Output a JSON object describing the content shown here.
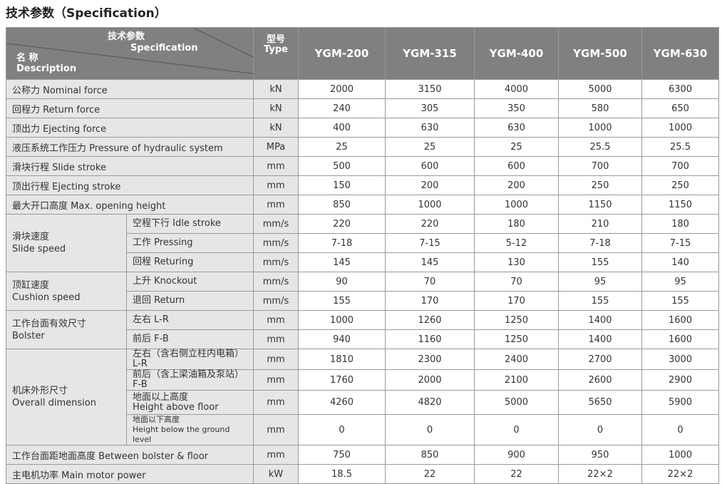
{
  "title": "技术参数（Specification）",
  "header": {
    "spec_cn": "技术参数",
    "spec_en": "Specification",
    "name_cn": "名 称",
    "name_en": "Description",
    "type_cn": "型号",
    "type_en": "Type",
    "models": [
      "YGM-200",
      "YGM-315",
      "YGM-400",
      "YGM-500",
      "YGM-630"
    ]
  },
  "rows": [
    {
      "label": "公称力 Nominal force",
      "unit": "kN",
      "values": [
        "2000",
        "3150",
        "4000",
        "5000",
        "6300"
      ]
    },
    {
      "label": "回程力 Return force",
      "unit": "kN",
      "values": [
        "240",
        "305",
        "350",
        "580",
        "650"
      ]
    },
    {
      "label": "顶出力 Ejecting force",
      "unit": "kN",
      "values": [
        "400",
        "630",
        "630",
        "1000",
        "1000"
      ]
    },
    {
      "label": "液压系统工作压力 Pressure of hydraulic system",
      "unit": "MPa",
      "values": [
        "25",
        "25",
        "25",
        "25.5",
        "25.5"
      ]
    },
    {
      "label": "滑块行程  Slide stroke",
      "unit": "mm",
      "values": [
        "500",
        "600",
        "600",
        "700",
        "700"
      ]
    },
    {
      "label": "顶出行程  Ejecting stroke",
      "unit": "mm",
      "values": [
        "150",
        "200",
        "200",
        "250",
        "250"
      ]
    },
    {
      "label": "最大开口高度  Max. opening height",
      "unit": "mm",
      "values": [
        "850",
        "1000",
        "1000",
        "1150",
        "1150"
      ]
    },
    {
      "group": "滑块速度\nSlide speed",
      "span": 3,
      "sub": "空程下行 Idle stroke",
      "unit": "mm/s",
      "values": [
        "220",
        "220",
        "180",
        "210",
        "180"
      ]
    },
    {
      "sub": "工作 Pressing",
      "unit": "mm/s",
      "values": [
        "7-18",
        "7-15",
        "5-12",
        "7-18",
        "7-15"
      ]
    },
    {
      "sub": "回程 Returing",
      "unit": "mm/s",
      "values": [
        "145",
        "145",
        "130",
        "155",
        "140"
      ]
    },
    {
      "group": "顶缸速度\nCushion speed",
      "span": 2,
      "sub": "上升 Knockout",
      "unit": "mm/s",
      "values": [
        "90",
        "70",
        "70",
        "95",
        "95"
      ]
    },
    {
      "sub": "退回 Return",
      "unit": "mm/s",
      "values": [
        "155",
        "170",
        "170",
        "155",
        "155"
      ]
    },
    {
      "group": "工作台面有效尺寸\nBolster",
      "span": 2,
      "sub": "左右 L-R",
      "unit": "mm",
      "values": [
        "1000",
        "1260",
        "1250",
        "1400",
        "1600"
      ]
    },
    {
      "sub": "前后 F-B",
      "unit": "mm",
      "values": [
        "940",
        "1160",
        "1250",
        "1400",
        "1600"
      ]
    },
    {
      "group": "机床外形尺寸\nOverall dimension",
      "span": 4,
      "sub": "左右（含右侧立柱内电箱） L-R",
      "unit": "mm",
      "values": [
        "1810",
        "2300",
        "2400",
        "2700",
        "3000"
      ]
    },
    {
      "sub": "前后（含上梁油箱及泵站） F-B",
      "unit": "mm",
      "values": [
        "1760",
        "2000",
        "2100",
        "2600",
        "2900"
      ]
    },
    {
      "sub": "地面以上高度\nHeight above floor",
      "unit": "mm",
      "values": [
        "4260",
        "4820",
        "5000",
        "5650",
        "5900"
      ],
      "tall": true
    },
    {
      "sub": "地面以下高度\nHeight below the ground level",
      "unit": "mm",
      "values": [
        "0",
        "0",
        "0",
        "0",
        "0"
      ],
      "tall": true,
      "small": true
    },
    {
      "label": "工作台面距地面高度 Between bolster & floor",
      "unit": "mm",
      "values": [
        "750",
        "850",
        "900",
        "950",
        "1000"
      ]
    },
    {
      "label": "主电机功率 Main motor power",
      "unit": "kW",
      "values": [
        "18.5",
        "22",
        "22",
        "22×2",
        "22×2"
      ]
    }
  ]
}
